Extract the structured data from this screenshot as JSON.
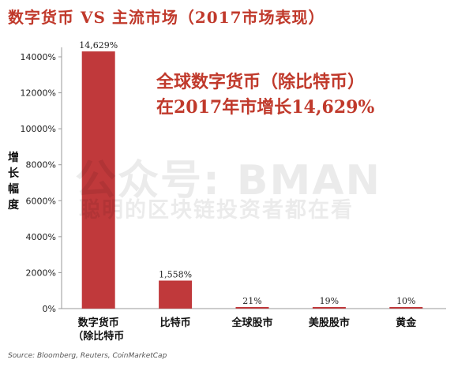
{
  "title": "数字货币 VS 主流市场（2017市场表现）",
  "ylabel_chars": [
    "增",
    "长",
    "幅",
    "度"
  ],
  "watermark": {
    "line1": "公众号: BMAN",
    "line2": "聪明的区块链投资者都在看"
  },
  "annotation": {
    "line1": "全球数字货币（除比特币）",
    "line2": "在2017年市增长14,629%"
  },
  "source": "Source: Bloomberg, Reuters, CoinMarketCap",
  "colors": {
    "bar": "#c0393b",
    "text": "#c0392b"
  },
  "chart_data": {
    "type": "bar",
    "categories": [
      [
        "数字货币",
        "（除比特币"
      ],
      [
        "比特币"
      ],
      [
        "全球股市"
      ],
      [
        "美股股市"
      ],
      [
        "黄金"
      ]
    ],
    "values": [
      14629,
      1558,
      21,
      19,
      10
    ],
    "value_labels": [
      "14,629%",
      "1,558%",
      "21%",
      "19%",
      "10%"
    ],
    "ylim": [
      0,
      14000
    ],
    "yticks": [
      0,
      2000,
      4000,
      6000,
      8000,
      10000,
      12000,
      14000
    ],
    "ytick_labels": [
      "0%",
      "2000%",
      "4000%",
      "6000%",
      "8000%",
      "10000%",
      "12000%",
      "14000%"
    ],
    "grid": false
  }
}
